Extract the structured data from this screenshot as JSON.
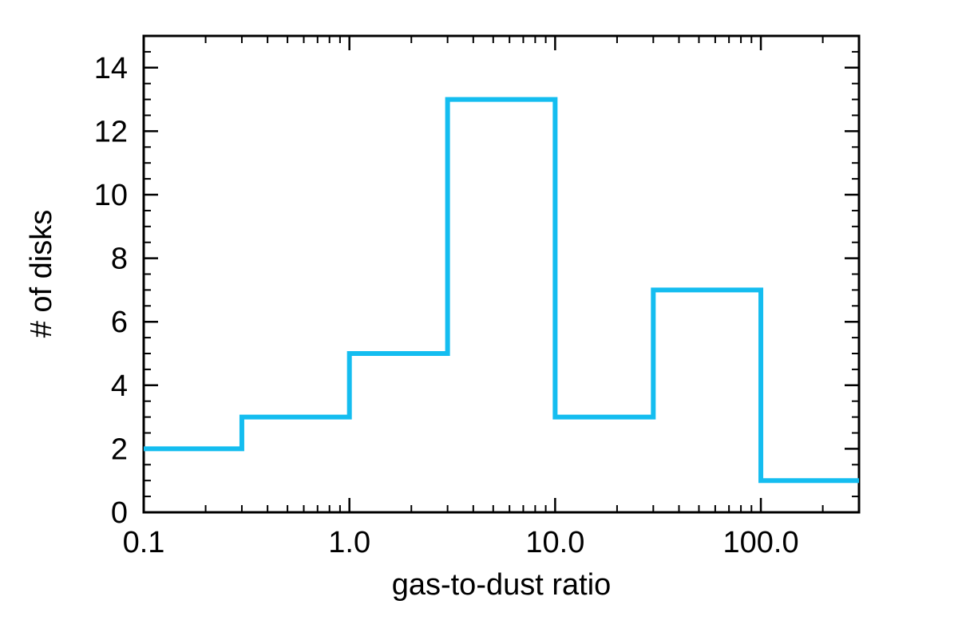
{
  "chart_data": {
    "type": "histogram",
    "xlabel": "gas-to-dust ratio",
    "ylabel": "# of disks",
    "x_scale": "log",
    "xlim": [
      0.1,
      300.0
    ],
    "ylim": [
      0,
      15
    ],
    "x_ticks": [
      {
        "value": 0.1,
        "label": "0.1"
      },
      {
        "value": 1.0,
        "label": "1.0"
      },
      {
        "value": 10.0,
        "label": "10.0"
      },
      {
        "value": 100.0,
        "label": "100.0"
      }
    ],
    "y_ticks": [
      {
        "value": 0,
        "label": "0"
      },
      {
        "value": 2,
        "label": "2"
      },
      {
        "value": 4,
        "label": "4"
      },
      {
        "value": 6,
        "label": "6"
      },
      {
        "value": 8,
        "label": "8"
      },
      {
        "value": 10,
        "label": "10"
      },
      {
        "value": 12,
        "label": "12"
      },
      {
        "value": 14,
        "label": "14"
      }
    ],
    "bin_edges": [
      0.1,
      0.3,
      1.0,
      3.0,
      10.0,
      30.0,
      100.0,
      300.0
    ],
    "counts": [
      2,
      3,
      5,
      13,
      3,
      7,
      1
    ],
    "color": "#14bdf0",
    "grid": false,
    "legend": "none"
  }
}
